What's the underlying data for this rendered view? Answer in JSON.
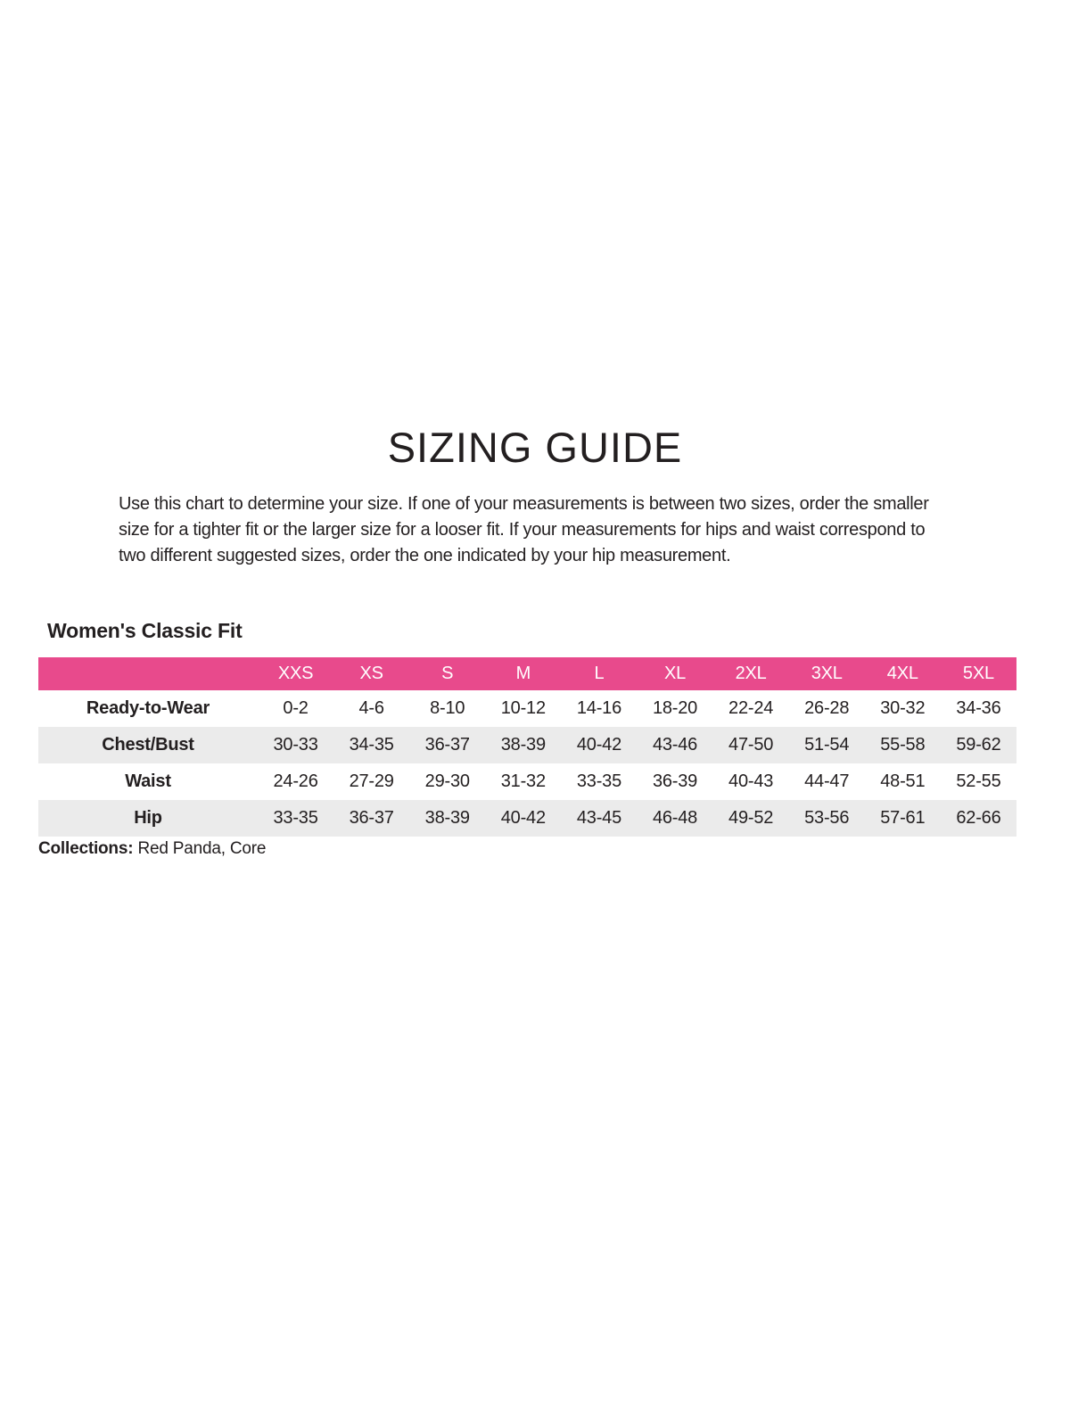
{
  "page": {
    "title": "SIZING GUIDE",
    "intro_lines": [
      "Use this chart to determine your size. If one of your measurements is between two sizes, order the smaller",
      "size for a tighter fit or the larger size for a looser fit. If your measurements for hips and waist correspond to",
      "two different suggested sizes, order the one indicated by your hip measurement."
    ]
  },
  "section": {
    "heading": "Women's Classic Fit"
  },
  "table": {
    "sizes": [
      "XXS",
      "XS",
      "S",
      "M",
      "L",
      "XL",
      "2XL",
      "3XL",
      "4XL",
      "5XL"
    ],
    "rows": [
      {
        "label": "Ready-to-Wear",
        "values": [
          "0-2",
          "4-6",
          "8-10",
          "10-12",
          "14-16",
          "18-20",
          "22-24",
          "26-28",
          "30-32",
          "34-36"
        ]
      },
      {
        "label": "Chest/Bust",
        "values": [
          "30-33",
          "34-35",
          "36-37",
          "38-39",
          "40-42",
          "43-46",
          "47-50",
          "51-54",
          "55-58",
          "59-62"
        ]
      },
      {
        "label": "Waist",
        "values": [
          "24-26",
          "27-29",
          "29-30",
          "31-32",
          "33-35",
          "36-39",
          "40-43",
          "44-47",
          "48-51",
          "52-55"
        ]
      },
      {
        "label": "Hip",
        "values": [
          "33-35",
          "36-37",
          "38-39",
          "40-42",
          "43-45",
          "46-48",
          "49-52",
          "53-56",
          "57-61",
          "62-66"
        ]
      }
    ]
  },
  "footer": {
    "collections_label": "Collections:",
    "collections_value": "Red Panda, Core"
  },
  "colors": {
    "accent_pink": "#E84A8C",
    "row_stripe": "#EBEBEB",
    "text": "#231F20",
    "header_text": "#FFFFFF"
  }
}
